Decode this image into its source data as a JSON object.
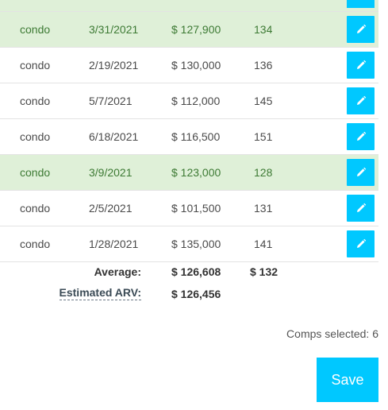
{
  "comps_table": {
    "rows": [
      {
        "type": "condo",
        "date": "3/31/2021",
        "price": "$ 127,900",
        "sqft": "134",
        "selected": true
      },
      {
        "type": "condo",
        "date": "2/19/2021",
        "price": "$ 130,000",
        "sqft": "136",
        "selected": false
      },
      {
        "type": "condo",
        "date": "5/7/2021",
        "price": "$ 112,000",
        "sqft": "145",
        "selected": false
      },
      {
        "type": "condo",
        "date": "6/18/2021",
        "price": "$ 116,500",
        "sqft": "151",
        "selected": false
      },
      {
        "type": "condo",
        "date": "3/9/2021",
        "price": "$ 123,000",
        "sqft": "128",
        "selected": true
      },
      {
        "type": "condo",
        "date": "2/5/2021",
        "price": "$ 101,500",
        "sqft": "131",
        "selected": false
      },
      {
        "type": "condo",
        "date": "1/28/2021",
        "price": "$ 135,000",
        "sqft": "141",
        "selected": false
      }
    ],
    "edit_icon": "pencil-icon"
  },
  "summary": {
    "average_label": "Average:",
    "average_price": "$ 126,608",
    "average_sqft": "$ 132",
    "arv_label": "Estimated ARV:",
    "arv_value": "$ 126,456"
  },
  "footer": {
    "comps_selected": "Comps selected: 6",
    "save_label": "Save"
  },
  "colors": {
    "accent": "#00c8ff",
    "selected_row": "#dff0d8",
    "selected_text": "#3d7a34"
  }
}
